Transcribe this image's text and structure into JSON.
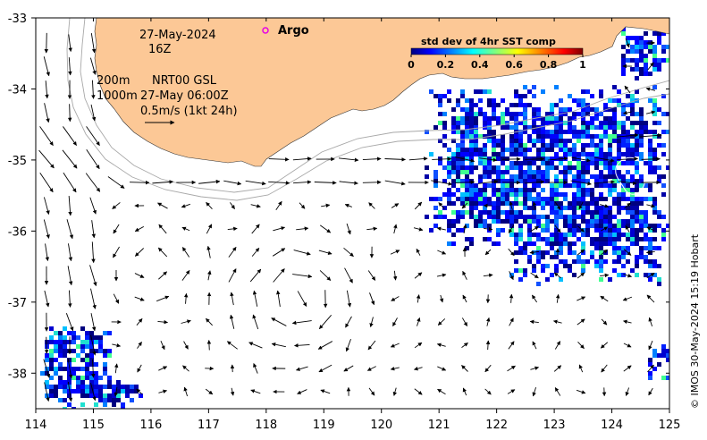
{
  "map": {
    "date_line": "27-May-2024",
    "time_line": "16Z",
    "legend_200m": "200m",
    "legend_1000m": "1000m",
    "product_line": "NRT00 GSL",
    "valid_time": "27-May 06:00Z",
    "scale_label": "0.5m/s (1kt 24h)",
    "argo_label": "Argo",
    "credit": "© IMOS 30-May-2024 15:19 Hobart",
    "lon_ticks": [
      "114",
      "115",
      "116",
      "117",
      "118",
      "119",
      "120",
      "121",
      "122",
      "123",
      "124",
      "125"
    ],
    "lat_ticks": [
      "-33",
      "-34",
      "-35",
      "-36",
      "-37",
      "-38"
    ],
    "lon_range": [
      114,
      125
    ],
    "lat_range": [
      -38.5,
      -33
    ],
    "colors": {
      "land": "#fcc896",
      "ocean": "#ffffff",
      "argo_marker": "#e600e6",
      "contour": "#a8a8a8"
    }
  },
  "colorbar": {
    "title": "std dev of 4hr SST comp",
    "ticks": [
      "0",
      "0.2",
      "0.4",
      "0.6",
      "0.8",
      "1"
    ],
    "colormap": "jet"
  }
}
